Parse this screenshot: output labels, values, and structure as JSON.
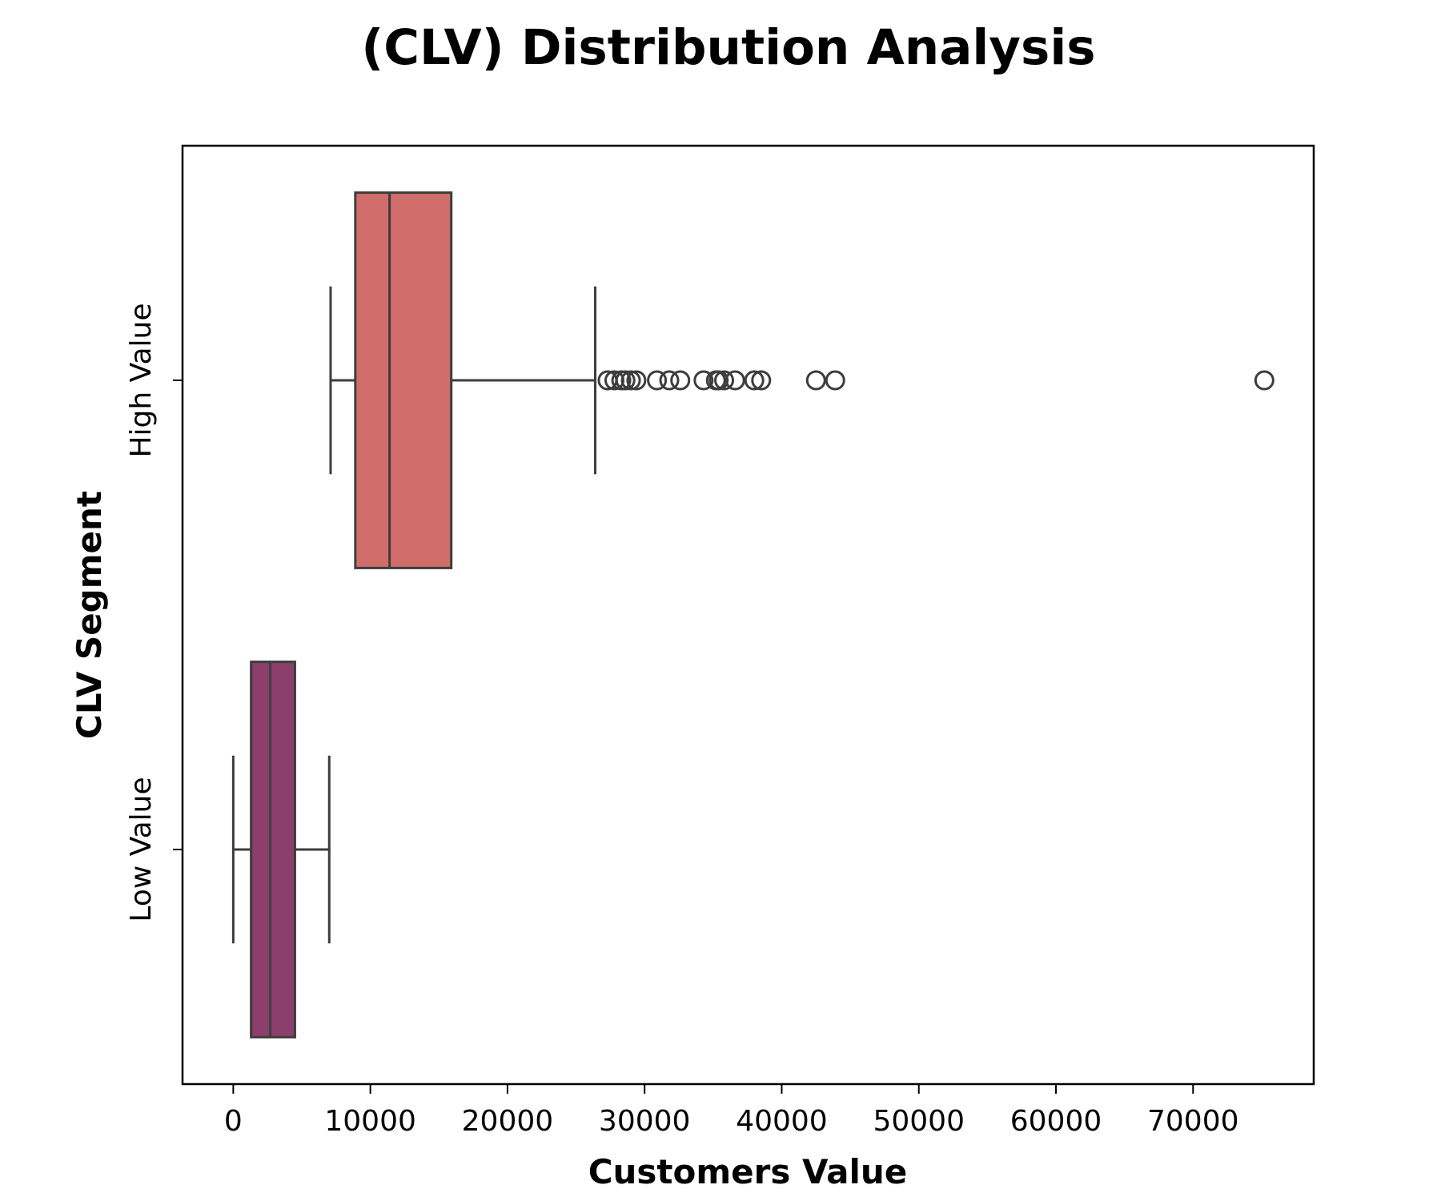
{
  "chart_data": {
    "type": "boxplot",
    "orientation": "horizontal",
    "title": "(CLV) Distribution Analysis",
    "xlabel": "Customers Value",
    "ylabel": "CLV Segment",
    "xlim": [
      -3700,
      78800
    ],
    "xticks": [
      0,
      10000,
      20000,
      30000,
      40000,
      50000,
      60000,
      70000
    ],
    "xtick_labels": [
      "0",
      "10000",
      "20000",
      "30000",
      "40000",
      "50000",
      "60000",
      "70000"
    ],
    "categories": [
      "High Value",
      "Low Value"
    ],
    "grid": false,
    "series": [
      {
        "name": "High Value",
        "color": "#d16d6a",
        "whisker_low": 7100,
        "q1": 8900,
        "median": 11400,
        "q3": 15900,
        "whisker_high": 26400,
        "outliers": [
          27300,
          27800,
          28300,
          28600,
          29000,
          29400,
          30900,
          31800,
          32600,
          34300,
          35200,
          35400,
          35800,
          36600,
          38000,
          38500,
          42500,
          43900,
          75200
        ]
      },
      {
        "name": "Low Value",
        "color": "#8b3f6a",
        "whisker_low": 0,
        "q1": 1300,
        "median": 2700,
        "q3": 4500,
        "whisker_high": 7000,
        "outliers": []
      }
    ]
  }
}
